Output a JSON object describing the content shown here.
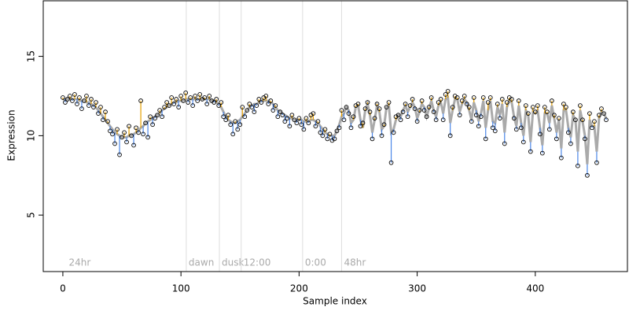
{
  "chart_data": {
    "type": "scatter",
    "xlabel": "Sample index",
    "ylabel": "Expression",
    "xlim": [
      -16.6,
      478
    ],
    "ylim": [
      1.44,
      18.5
    ],
    "xticks": [
      0,
      100,
      200,
      300,
      400
    ],
    "yticks": [
      5,
      10,
      15
    ],
    "point_color": "#000000",
    "above_color": "#e69f00",
    "below_color": "#4a86e8",
    "fit_color": "#aaaaaa",
    "annotations": [
      {
        "text": "24hr",
        "x": 3,
        "line": false
      },
      {
        "text": "dawn",
        "x": 104.5,
        "line": true
      },
      {
        "text": "dusk",
        "x": 132.5,
        "line": true
      },
      {
        "text": "12:00",
        "x": 151,
        "line": true
      },
      {
        "text": "0:00",
        "x": 203,
        "line": true
      },
      {
        "text": "48hr",
        "x": 236,
        "line": true
      }
    ],
    "x": [
      0,
      2,
      4,
      6,
      8,
      10,
      12,
      14,
      16,
      18,
      20,
      22,
      24,
      26,
      28,
      30,
      32,
      34,
      36,
      38,
      40,
      42,
      44,
      46,
      48,
      50,
      52,
      54,
      56,
      58,
      60,
      62,
      64,
      66,
      68,
      70,
      72,
      74,
      76,
      78,
      80,
      82,
      84,
      86,
      88,
      90,
      92,
      94,
      96,
      98,
      100,
      102,
      104,
      106,
      108,
      110,
      112,
      114,
      116,
      118,
      120,
      122,
      124,
      126,
      128,
      130,
      132,
      134,
      136,
      138,
      140,
      142,
      144,
      146,
      148,
      150,
      152,
      154,
      156,
      158,
      160,
      162,
      164,
      166,
      168,
      170,
      172,
      174,
      176,
      178,
      180,
      182,
      184,
      186,
      188,
      190,
      192,
      194,
      196,
      198,
      200,
      202,
      204,
      206,
      208,
      210,
      212,
      214,
      216,
      218,
      220,
      222,
      224,
      226,
      228,
      230,
      232,
      234,
      236,
      238,
      240,
      242,
      244,
      246,
      248,
      250,
      252,
      254,
      256,
      258,
      260,
      262,
      264,
      266,
      268,
      270,
      272,
      274,
      276,
      278,
      280,
      282,
      284,
      286,
      288,
      290,
      292,
      294,
      296,
      298,
      300,
      302,
      304,
      306,
      308,
      310,
      312,
      314,
      316,
      318,
      320,
      322,
      324,
      326,
      328,
      330,
      332,
      334,
      336,
      338,
      340,
      342,
      344,
      346,
      348,
      350,
      352,
      354,
      356,
      358,
      360,
      362,
      364,
      366,
      368,
      370,
      372,
      374,
      376,
      378,
      380,
      382,
      384,
      386,
      388,
      390,
      392,
      394,
      396,
      398,
      400,
      402,
      404,
      406,
      408,
      410,
      412,
      414,
      416,
      418,
      420,
      422,
      424,
      426,
      428,
      430,
      432,
      434,
      436,
      438,
      440,
      442,
      444,
      446,
      448,
      450,
      452,
      454,
      456,
      458,
      460
    ],
    "values": [
      12.4,
      12.1,
      12.3,
      12.5,
      12.2,
      12.6,
      12.0,
      12.4,
      11.7,
      12.2,
      12.5,
      11.9,
      12.3,
      11.8,
      12.1,
      11.4,
      11.8,
      11.0,
      11.5,
      10.9,
      10.3,
      10.1,
      9.5,
      10.4,
      8.8,
      9.9,
      10.2,
      9.6,
      10.6,
      10.0,
      9.4,
      10.5,
      10.2,
      12.2,
      10.1,
      10.8,
      9.9,
      11.2,
      10.7,
      11.1,
      11.3,
      11.6,
      11.2,
      11.8,
      12.1,
      11.9,
      12.4,
      12.0,
      12.3,
      11.8,
      12.5,
      12.2,
      12.7,
      12.1,
      12.4,
      11.9,
      12.5,
      12.2,
      12.6,
      12.3,
      12.4,
      12.0,
      12.5,
      12.2,
      12.1,
      12.3,
      11.9,
      12.1,
      11.2,
      11.0,
      11.3,
      10.7,
      10.1,
      10.9,
      10.4,
      10.7,
      11.8,
      11.2,
      11.6,
      12.0,
      11.8,
      11.5,
      11.9,
      12.3,
      12.1,
      12.4,
      12.5,
      12.0,
      12.2,
      11.6,
      11.9,
      11.2,
      11.5,
      11.3,
      10.9,
      11.1,
      10.6,
      11.3,
      11.0,
      10.8,
      11.1,
      10.7,
      10.4,
      11.1,
      10.8,
      11.3,
      11.4,
      10.6,
      10.9,
      10.2,
      10.0,
      10.4,
      9.8,
      10.1,
      9.7,
      9.8,
      10.3,
      10.5,
      11.6,
      11.0,
      11.8,
      11.4,
      10.5,
      11.2,
      11.9,
      12.0,
      10.6,
      10.8,
      11.7,
      12.1,
      11.5,
      9.8,
      11.1,
      12.0,
      11.7,
      10.0,
      10.7,
      11.8,
      12.1,
      8.3,
      10.2,
      11.2,
      11.3,
      11.0,
      11.5,
      12.0,
      11.2,
      11.9,
      12.3,
      11.7,
      10.9,
      11.6,
      12.2,
      11.6,
      11.2,
      11.8,
      12.4,
      11.5,
      11.0,
      12.1,
      12.3,
      11.0,
      12.6,
      12.8,
      10.0,
      11.8,
      12.5,
      12.4,
      11.3,
      12.2,
      12.5,
      12.0,
      11.8,
      10.9,
      12.4,
      11.3,
      10.6,
      11.2,
      12.4,
      9.8,
      12.1,
      12.4,
      10.5,
      10.3,
      12.0,
      11.1,
      12.3,
      9.5,
      12.1,
      12.4,
      12.3,
      11.1,
      10.4,
      12.2,
      10.5,
      9.6,
      11.9,
      11.4,
      9.0,
      11.8,
      11.5,
      11.9,
      10.1,
      8.9,
      11.8,
      11.5,
      10.4,
      12.2,
      11.3,
      9.8,
      11.1,
      8.6,
      12.0,
      11.8,
      10.2,
      9.5,
      11.5,
      11.0,
      8.1,
      11.9,
      11.0,
      9.8,
      7.5,
      11.4,
      10.5,
      10.9,
      8.3,
      11.3,
      11.7,
      11.4,
      11.0
    ],
    "fit": [
      12.3,
      12.3,
      12.3,
      12.3,
      12.3,
      12.3,
      12.3,
      12.2,
      12.2,
      12.2,
      12.1,
      12.1,
      12.0,
      11.9,
      11.8,
      11.6,
      11.4,
      11.2,
      11.0,
      10.8,
      10.6,
      10.4,
      10.2,
      10.1,
      10.0,
      9.9,
      9.9,
      9.9,
      10.0,
      10.0,
      10.1,
      10.2,
      10.3,
      10.5,
      10.6,
      10.8,
      10.9,
      11.0,
      11.1,
      11.2,
      11.3,
      11.4,
      11.6,
      11.7,
      11.8,
      11.9,
      12.0,
      12.1,
      12.1,
      12.2,
      12.2,
      12.2,
      12.3,
      12.3,
      12.3,
      12.3,
      12.3,
      12.3,
      12.3,
      12.3,
      12.3,
      12.3,
      12.3,
      12.2,
      12.2,
      12.1,
      12.0,
      11.8,
      11.5,
      11.2,
      11.0,
      10.9,
      10.8,
      10.8,
      10.9,
      11.0,
      11.2,
      11.4,
      11.6,
      11.8,
      11.9,
      12.0,
      12.0,
      12.1,
      12.2,
      12.2,
      12.2,
      12.2,
      12.1,
      12.0,
      11.8,
      11.6,
      11.5,
      11.4,
      11.3,
      11.2,
      11.1,
      11.1,
      11.0,
      11.0,
      11.0,
      11.0,
      10.9,
      10.9,
      10.9,
      11.0,
      11.0,
      10.9,
      10.8,
      10.6,
      10.4,
      10.2,
      10.1,
      10.0,
      10.0,
      10.0,
      10.3,
      10.7,
      11.2,
      11.4,
      11.8,
      11.6,
      10.8,
      11.0,
      11.8,
      11.9,
      11.0,
      10.5,
      11.6,
      12.0,
      11.3,
      10.2,
      11.0,
      11.9,
      11.5,
      10.4,
      10.6,
      11.8,
      11.9,
      10.2,
      10.4,
      11.0,
      11.3,
      11.2,
      11.6,
      11.9,
      11.5,
      11.8,
      12.1,
      11.8,
      11.1,
      11.5,
      12.0,
      11.8,
      11.2,
      11.7,
      12.2,
      11.6,
      11.2,
      11.9,
      12.1,
      11.4,
      12.3,
      12.4,
      10.8,
      11.6,
      12.3,
      12.3,
      11.5,
      12.0,
      12.3,
      12.1,
      11.6,
      11.0,
      12.1,
      11.6,
      10.9,
      11.4,
      12.2,
      10.5,
      11.6,
      12.2,
      10.9,
      10.8,
      11.8,
      11.3,
      12.0,
      10.2,
      11.8,
      12.2,
      12.1,
      11.2,
      10.6,
      11.9,
      10.8,
      10.0,
      11.6,
      11.3,
      9.6,
      11.5,
      11.4,
      11.6,
      10.5,
      9.4,
      11.4,
      11.4,
      10.8,
      11.9,
      11.1,
      10.2,
      11.0,
      9.2,
      11.6,
      11.6,
      10.5,
      9.9,
      11.3,
      11.0,
      9.0,
      11.6,
      10.9,
      10.0,
      8.2,
      11.0,
      10.6,
      10.6,
      9.0,
      11.1,
      11.5,
      11.4,
      11.1
    ]
  }
}
